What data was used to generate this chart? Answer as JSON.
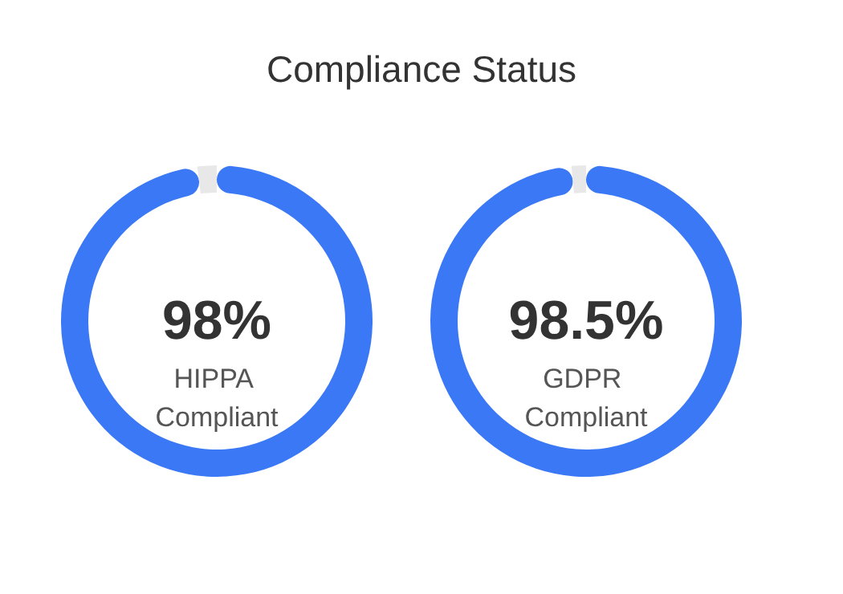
{
  "chart_data": [
    {
      "type": "donut",
      "title": "Compliance Status",
      "categories": [
        null,
        null
      ],
      "values": [
        98,
        2
      ],
      "colors": [
        "#3b78f5",
        "#e8e8e8"
      ],
      "value_labels": [
        "98%",
        null
      ],
      "annotations": [
        "HIPPA Compliant"
      ]
    },
    {
      "type": "donut",
      "categories": [
        null,
        null
      ],
      "values": [
        98.5,
        1.5
      ],
      "colors": [
        "#3b78f5",
        "#e8e8e8"
      ],
      "value_labels": [
        "98.5%",
        null
      ],
      "annotations": [
        "GDPR Compliant"
      ]
    }
  ]
}
